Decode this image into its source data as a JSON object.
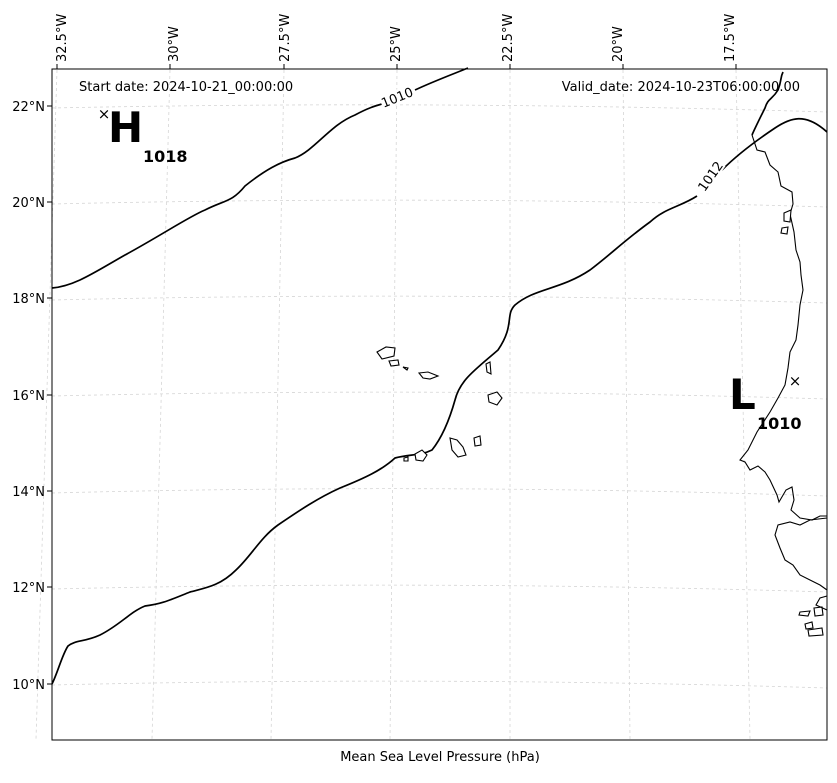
{
  "map": {
    "start_date": "Start date: 2024-10-21_00:00:00",
    "valid_date": "Valid_date: 2024-10-23T06:00:00.00",
    "xlabel": "Mean Sea Level Pressure (hPa)",
    "lon_ticks": [
      "32.5°W",
      "30°W",
      "27.5°W",
      "25°W",
      "22.5°W",
      "20°W",
      "17.5°W"
    ],
    "lat_ticks": [
      "22°N",
      "20°N",
      "18°N",
      "16°N",
      "14°N",
      "12°N",
      "10°N"
    ],
    "contours": [
      {
        "value": 1010,
        "label": "1010"
      },
      {
        "value": 1012,
        "label": "1012"
      }
    ],
    "centers": [
      {
        "type": "high",
        "letter": "H",
        "value": "1018"
      },
      {
        "type": "low",
        "letter": "L",
        "value": "1010"
      }
    ],
    "colors": {
      "contour": "#000000",
      "coastline": "#000000",
      "grid": "#cccccc"
    }
  }
}
